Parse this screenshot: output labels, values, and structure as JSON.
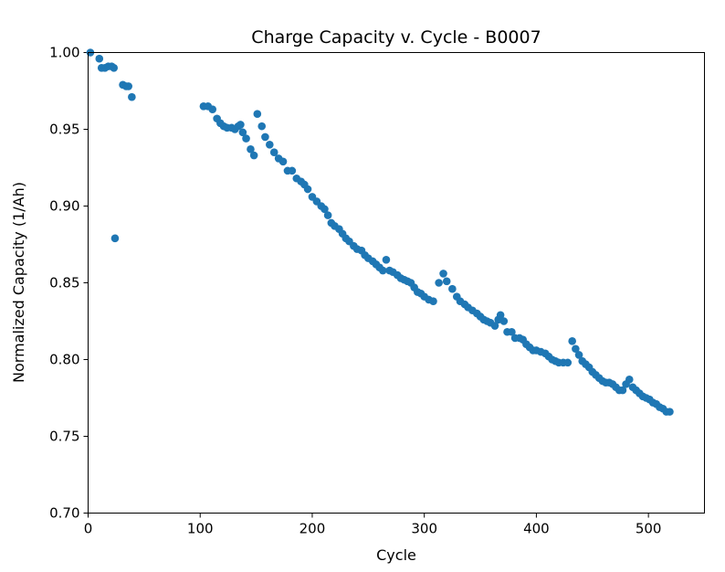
{
  "chart_data": {
    "type": "scatter",
    "title": "Charge Capacity v. Cycle - B0007",
    "xlabel": "Cycle",
    "ylabel": "Normalized Capacity (1/Ah)",
    "xlim": [
      0,
      550
    ],
    "ylim": [
      0.7,
      1.0
    ],
    "xticks": [
      0,
      100,
      200,
      300,
      400,
      500
    ],
    "xtick_labels": [
      "0",
      "100",
      "200",
      "300",
      "400",
      "500"
    ],
    "yticks": [
      0.7,
      0.75,
      0.8,
      0.85,
      0.9,
      0.95,
      1.0
    ],
    "ytick_labels": [
      "0.70",
      "0.75",
      "0.80",
      "0.85",
      "0.90",
      "0.95",
      "1.00"
    ],
    "grid": false,
    "marker_color": "#1f77b4",
    "series": [
      {
        "points": [
          [
            2,
            1.0
          ],
          [
            10,
            0.996
          ],
          [
            12,
            0.99
          ],
          [
            15,
            0.99
          ],
          [
            18,
            0.991
          ],
          [
            21,
            0.991
          ],
          [
            23,
            0.99
          ],
          [
            24,
            0.879
          ],
          [
            31,
            0.979
          ],
          [
            34,
            0.978
          ],
          [
            36,
            0.978
          ],
          [
            39,
            0.971
          ],
          [
            103,
            0.965
          ],
          [
            107,
            0.965
          ],
          [
            111,
            0.963
          ],
          [
            115,
            0.957
          ],
          [
            118,
            0.954
          ],
          [
            121,
            0.952
          ],
          [
            124,
            0.951
          ],
          [
            128,
            0.951
          ],
          [
            131,
            0.95
          ],
          [
            134,
            0.952
          ],
          [
            136,
            0.953
          ],
          [
            138,
            0.948
          ],
          [
            141,
            0.944
          ],
          [
            145,
            0.937
          ],
          [
            148,
            0.933
          ],
          [
            151,
            0.96
          ],
          [
            155,
            0.952
          ],
          [
            158,
            0.945
          ],
          [
            162,
            0.94
          ],
          [
            166,
            0.935
          ],
          [
            170,
            0.931
          ],
          [
            174,
            0.929
          ],
          [
            178,
            0.923
          ],
          [
            182,
            0.923
          ],
          [
            186,
            0.918
          ],
          [
            190,
            0.916
          ],
          [
            193,
            0.914
          ],
          [
            196,
            0.911
          ],
          [
            200,
            0.906
          ],
          [
            204,
            0.903
          ],
          [
            208,
            0.9
          ],
          [
            211,
            0.898
          ],
          [
            214,
            0.894
          ],
          [
            217,
            0.889
          ],
          [
            220,
            0.887
          ],
          [
            224,
            0.885
          ],
          [
            227,
            0.882
          ],
          [
            230,
            0.879
          ],
          [
            233,
            0.877
          ],
          [
            237,
            0.874
          ],
          [
            240,
            0.872
          ],
          [
            244,
            0.871
          ],
          [
            247,
            0.868
          ],
          [
            250,
            0.866
          ],
          [
            254,
            0.864
          ],
          [
            257,
            0.862
          ],
          [
            260,
            0.86
          ],
          [
            263,
            0.858
          ],
          [
            266,
            0.865
          ],
          [
            269,
            0.858
          ],
          [
            272,
            0.857
          ],
          [
            276,
            0.855
          ],
          [
            279,
            0.853
          ],
          [
            282,
            0.852
          ],
          [
            285,
            0.851
          ],
          [
            288,
            0.85
          ],
          [
            291,
            0.847
          ],
          [
            294,
            0.844
          ],
          [
            297,
            0.843
          ],
          [
            300,
            0.841
          ],
          [
            304,
            0.839
          ],
          [
            308,
            0.838
          ],
          [
            313,
            0.85
          ],
          [
            317,
            0.856
          ],
          [
            320,
            0.851
          ],
          [
            325,
            0.846
          ],
          [
            329,
            0.841
          ],
          [
            332,
            0.838
          ],
          [
            336,
            0.836
          ],
          [
            339,
            0.834
          ],
          [
            343,
            0.832
          ],
          [
            347,
            0.83
          ],
          [
            350,
            0.828
          ],
          [
            353,
            0.826
          ],
          [
            356,
            0.825
          ],
          [
            359,
            0.824
          ],
          [
            363,
            0.822
          ],
          [
            366,
            0.826
          ],
          [
            368,
            0.829
          ],
          [
            371,
            0.825
          ],
          [
            374,
            0.818
          ],
          [
            378,
            0.818
          ],
          [
            381,
            0.814
          ],
          [
            385,
            0.814
          ],
          [
            388,
            0.813
          ],
          [
            391,
            0.81
          ],
          [
            394,
            0.808
          ],
          [
            397,
            0.806
          ],
          [
            400,
            0.806
          ],
          [
            404,
            0.805
          ],
          [
            408,
            0.804
          ],
          [
            411,
            0.802
          ],
          [
            414,
            0.8
          ],
          [
            417,
            0.799
          ],
          [
            420,
            0.798
          ],
          [
            424,
            0.798
          ],
          [
            428,
            0.798
          ],
          [
            432,
            0.812
          ],
          [
            435,
            0.807
          ],
          [
            438,
            0.803
          ],
          [
            441,
            0.799
          ],
          [
            444,
            0.797
          ],
          [
            447,
            0.795
          ],
          [
            450,
            0.792
          ],
          [
            453,
            0.79
          ],
          [
            456,
            0.788
          ],
          [
            459,
            0.786
          ],
          [
            462,
            0.785
          ],
          [
            465,
            0.785
          ],
          [
            468,
            0.784
          ],
          [
            471,
            0.782
          ],
          [
            474,
            0.78
          ],
          [
            477,
            0.78
          ],
          [
            480,
            0.784
          ],
          [
            483,
            0.787
          ],
          [
            486,
            0.782
          ],
          [
            489,
            0.78
          ],
          [
            492,
            0.778
          ],
          [
            495,
            0.776
          ],
          [
            498,
            0.775
          ],
          [
            501,
            0.774
          ],
          [
            504,
            0.772
          ],
          [
            507,
            0.771
          ],
          [
            510,
            0.769
          ],
          [
            513,
            0.768
          ],
          [
            516,
            0.766
          ],
          [
            519,
            0.766
          ]
        ]
      }
    ]
  }
}
